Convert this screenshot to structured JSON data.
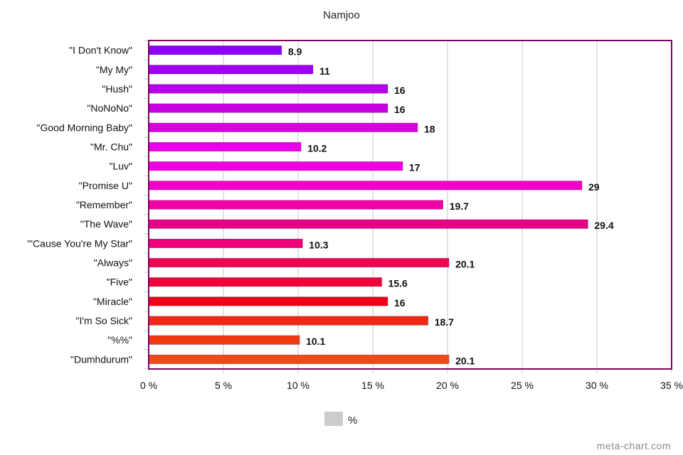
{
  "chart_data": {
    "type": "bar",
    "orientation": "horizontal",
    "title": "Namjoo",
    "categories": [
      "\"I Don't Know\"",
      "\"My My\"",
      "\"Hush\"",
      "\"NoNoNo\"",
      "\"Good Morning Baby\"",
      "\"Mr. Chu\"",
      "\"Luv\"",
      "\"Promise U\"",
      "\"Remember\"",
      "\"The Wave\"",
      "\"'Cause You're My Star\"",
      "\"Always\"",
      "\"Five\"",
      "\"Miracle\"",
      "\"I'm So Sick\"",
      "\"%%\"",
      "\"Dumhdurum\""
    ],
    "values": [
      8.9,
      11,
      16,
      16,
      18,
      10.2,
      17,
      29,
      19.7,
      29.4,
      10.3,
      20.1,
      15.6,
      16,
      18.7,
      10.1,
      20.1
    ],
    "value_labels": [
      "8.9",
      "11",
      "16",
      "16",
      "18",
      "10.2",
      "17",
      "29",
      "19.7",
      "29.4",
      "10.3",
      "20.1",
      "15.6",
      "16",
      "18.7",
      "10.1",
      "20.1"
    ],
    "colors": [
      "#8c00ff",
      "#a000f0",
      "#b400e8",
      "#c800e0",
      "#d800e0",
      "#e800e8",
      "#f000e0",
      "#f000c8",
      "#f000a8",
      "#e80088",
      "#f00078",
      "#f00050",
      "#f00038",
      "#f00018",
      "#f02818",
      "#f03810",
      "#f04818"
    ],
    "xlim": [
      0,
      35
    ],
    "xticks": [
      0,
      5,
      10,
      15,
      20,
      25,
      30,
      35
    ],
    "xtick_labels": [
      "0 %",
      "5 %",
      "10 %",
      "15 %",
      "20 %",
      "25 %",
      "30 %",
      "35 %"
    ],
    "xlabel": "",
    "ylabel": "",
    "grid": true,
    "legend": {
      "position": "bottom",
      "entries": [
        {
          "label": "%",
          "color": "#cccccc"
        }
      ]
    },
    "frame_color": "#800060"
  },
  "watermark": "meta-chart.com"
}
